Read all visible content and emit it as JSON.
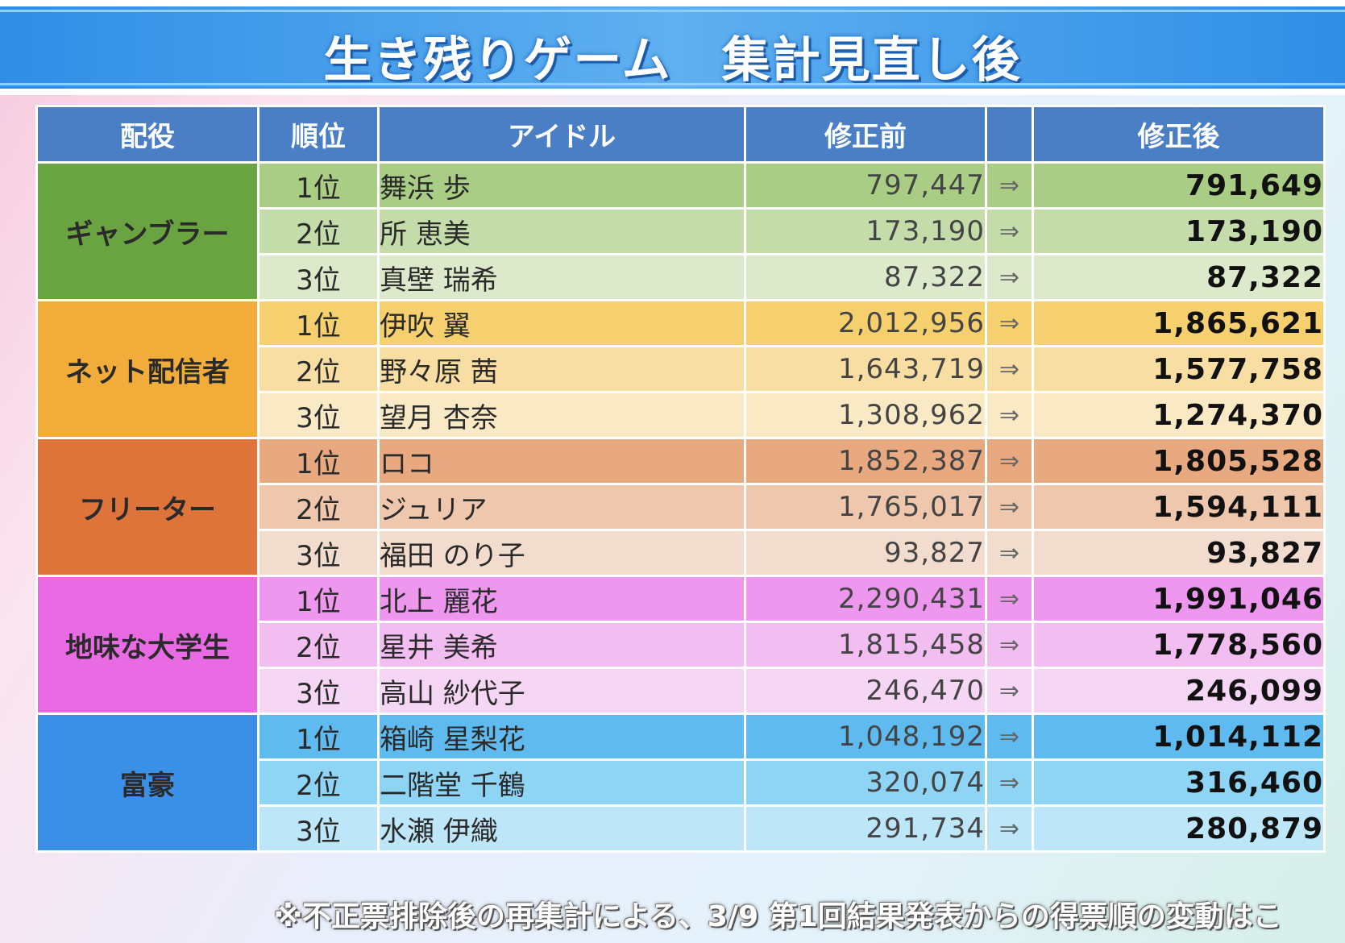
{
  "title": "生き残りゲーム　集計見直し後",
  "headers": {
    "role": "配役",
    "rank": "順位",
    "idol": "アイドル",
    "before": "修正前",
    "arrow": "",
    "after": "修正後"
  },
  "arrow_symbol": "⇒",
  "groups": [
    {
      "role": "ギャンブラー",
      "role_color": "#6aa442",
      "row_colors": [
        "#a9cd84",
        "#c4dcaa",
        "#dde9cb"
      ],
      "rows": [
        {
          "rank": "1位",
          "idol": "舞浜 歩",
          "before": "797,447",
          "after": "791,649"
        },
        {
          "rank": "2位",
          "idol": "所 恵美",
          "before": "173,190",
          "after": "173,190"
        },
        {
          "rank": "3位",
          "idol": "真壁 瑞希",
          "before": "87,322",
          "after": "87,322"
        }
      ]
    },
    {
      "role": "ネット配信者",
      "role_color": "#f2ac3a",
      "row_colors": [
        "#f6cf6e",
        "#f8deA2",
        "#fae9c5"
      ],
      "rows": [
        {
          "rank": "1位",
          "idol": "伊吹 翼",
          "before": "2,012,956",
          "after": "1,865,621"
        },
        {
          "rank": "2位",
          "idol": "野々原 茜",
          "before": "1,643,719",
          "after": "1,577,758"
        },
        {
          "rank": "3位",
          "idol": "望月 杏奈",
          "before": "1,308,962",
          "after": "1,274,370"
        }
      ]
    },
    {
      "role": "フリーター",
      "role_color": "#de743a",
      "row_colors": [
        "#e9a980",
        "#eec7ad",
        "#f2dccd"
      ],
      "rows": [
        {
          "rank": "1位",
          "idol": "ロコ",
          "before": "1,852,387",
          "after": "1,805,528"
        },
        {
          "rank": "2位",
          "idol": "ジュリア",
          "before": "1,765,017",
          "after": "1,594,111"
        },
        {
          "rank": "3位",
          "idol": "福田 のり子",
          "before": "93,827",
          "after": "93,827"
        }
      ]
    },
    {
      "role": "地味な大学生",
      "role_color": "#e86be4",
      "row_colors": [
        "#ee97ef",
        "#f2bdf1",
        "#f5d6f4"
      ],
      "rows": [
        {
          "rank": "1位",
          "idol": "北上 麗花",
          "before": "2,290,431",
          "after": "1,991,046"
        },
        {
          "rank": "2位",
          "idol": "星井 美希",
          "before": "1,815,458",
          "after": "1,778,560"
        },
        {
          "rank": "3位",
          "idol": "高山 紗代子",
          "before": "246,470",
          "after": "246,099"
        }
      ]
    },
    {
      "role": "富豪",
      "role_color": "#3a8fe6",
      "row_colors": [
        "#5fbbef",
        "#8ed4f5",
        "#bde6f8"
      ],
      "rows": [
        {
          "rank": "1位",
          "idol": "箱崎 星梨花",
          "before": "1,048,192",
          "after": "1,014,112"
        },
        {
          "rank": "2位",
          "idol": "二階堂 千鶴",
          "before": "320,074",
          "after": "316,460"
        },
        {
          "rank": "3位",
          "idol": "水瀬 伊織",
          "before": "291,734",
          "after": "280,879"
        }
      ]
    }
  ],
  "footnote": "※不正票排除後の再集計による、3/9 第1回結果発表からの得票順の変動はこ"
}
